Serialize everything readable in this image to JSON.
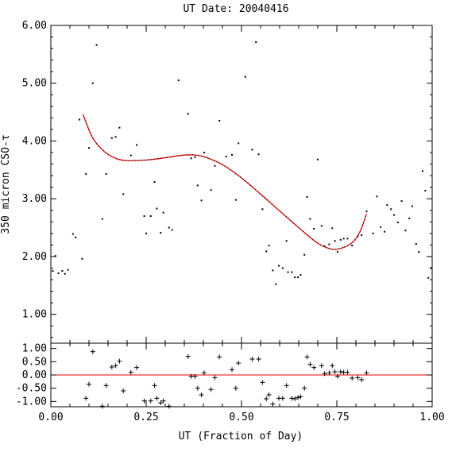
{
  "chart_data": [
    {
      "type": "scatter",
      "title": "UT Date: 20040416",
      "xlabel": "",
      "ylabel": "350 micron CSO-τ",
      "xlim": [
        0,
        1
      ],
      "ylim": [
        0.5,
        6.0
      ],
      "yticks": [
        1.0,
        2.0,
        3.0,
        4.0,
        5.0,
        6.0
      ],
      "ytick_labels": [
        "1.00",
        "2.00",
        "3.00",
        "4.00",
        "5.00",
        "6.00"
      ],
      "series": [
        {
          "marker": "dot",
          "color": "#000000",
          "points": [
            [
              0.005,
              1.75
            ],
            [
              0.012,
              2.01
            ],
            [
              0.02,
              1.71
            ],
            [
              0.03,
              1.75
            ],
            [
              0.037,
              1.7
            ],
            [
              0.045,
              1.77
            ],
            [
              0.058,
              2.39
            ],
            [
              0.065,
              2.33
            ],
            [
              0.075,
              4.37
            ],
            [
              0.082,
              1.96
            ],
            [
              0.092,
              3.43
            ],
            [
              0.1,
              3.88
            ],
            [
              0.11,
              5.0
            ],
            [
              0.12,
              5.66
            ],
            [
              0.135,
              2.65
            ],
            [
              0.145,
              3.43
            ],
            [
              0.16,
              4.05
            ],
            [
              0.17,
              4.07
            ],
            [
              0.18,
              4.23
            ],
            [
              0.19,
              3.08
            ],
            [
              0.21,
              3.75
            ],
            [
              0.225,
              3.93
            ],
            [
              0.245,
              2.7
            ],
            [
              0.25,
              2.4
            ],
            [
              0.262,
              2.7
            ],
            [
              0.272,
              3.29
            ],
            [
              0.278,
              2.83
            ],
            [
              0.288,
              2.41
            ],
            [
              0.295,
              2.76
            ],
            [
              0.31,
              2.5
            ],
            [
              0.318,
              2.46
            ],
            [
              0.335,
              5.05
            ],
            [
              0.36,
              4.47
            ],
            [
              0.368,
              3.7
            ],
            [
              0.378,
              3.72
            ],
            [
              0.385,
              3.23
            ],
            [
              0.395,
              2.97
            ],
            [
              0.402,
              3.8
            ],
            [
              0.42,
              3.15
            ],
            [
              0.43,
              3.57
            ],
            [
              0.442,
              4.35
            ],
            [
              0.46,
              3.73
            ],
            [
              0.475,
              3.76
            ],
            [
              0.485,
              2.98
            ],
            [
              0.492,
              3.96
            ],
            [
              0.51,
              5.11
            ],
            [
              0.528,
              3.85
            ],
            [
              0.538,
              5.71
            ],
            [
              0.545,
              3.77
            ],
            [
              0.555,
              2.82
            ],
            [
              0.565,
              2.09
            ],
            [
              0.572,
              2.19
            ],
            [
              0.582,
              1.76
            ],
            [
              0.59,
              1.52
            ],
            [
              0.598,
              1.84
            ],
            [
              0.608,
              1.8
            ],
            [
              0.618,
              2.27
            ],
            [
              0.622,
              1.73
            ],
            [
              0.632,
              1.73
            ],
            [
              0.64,
              1.64
            ],
            [
              0.648,
              1.64
            ],
            [
              0.655,
              1.68
            ],
            [
              0.665,
              2.03
            ],
            [
              0.672,
              3.03
            ],
            [
              0.68,
              2.65
            ],
            [
              0.69,
              2.48
            ],
            [
              0.7,
              3.68
            ],
            [
              0.71,
              2.53
            ],
            [
              0.718,
              2.18
            ],
            [
              0.73,
              2.21
            ],
            [
              0.738,
              2.49
            ],
            [
              0.745,
              2.27
            ],
            [
              0.752,
              2.08
            ],
            [
              0.76,
              2.29
            ],
            [
              0.768,
              2.31
            ],
            [
              0.778,
              2.31
            ],
            [
              0.79,
              2.19
            ],
            [
              0.805,
              2.35
            ],
            [
              0.815,
              2.37
            ],
            [
              0.828,
              2.78
            ],
            [
              0.845,
              2.4
            ],
            [
              0.855,
              3.04
            ],
            [
              0.865,
              2.51
            ],
            [
              0.875,
              2.43
            ],
            [
              0.882,
              2.89
            ],
            [
              0.892,
              2.82
            ],
            [
              0.9,
              2.72
            ],
            [
              0.91,
              2.59
            ],
            [
              0.92,
              2.96
            ],
            [
              0.93,
              2.45
            ],
            [
              0.94,
              2.66
            ],
            [
              0.948,
              2.87
            ],
            [
              0.958,
              2.22
            ],
            [
              0.965,
              2.08
            ],
            [
              0.975,
              3.48
            ],
            [
              0.982,
              3.14
            ],
            [
              0.99,
              1.63
            ],
            [
              0.997,
              1.8
            ]
          ]
        },
        {
          "type": "polynomial-fit",
          "color": "#ff0000",
          "x_range": [
            0.085,
            0.828
          ],
          "knots": [
            [
              0.085,
              4.45
            ],
            [
              0.11,
              4.05
            ],
            [
              0.14,
              3.82
            ],
            [
              0.17,
              3.7
            ],
            [
              0.2,
              3.66
            ],
            [
              0.25,
              3.67
            ],
            [
              0.3,
              3.71
            ],
            [
              0.34,
              3.75
            ],
            [
              0.37,
              3.76
            ],
            [
              0.4,
              3.73
            ],
            [
              0.45,
              3.59
            ],
            [
              0.5,
              3.36
            ],
            [
              0.55,
              3.08
            ],
            [
              0.6,
              2.79
            ],
            [
              0.65,
              2.5
            ],
            [
              0.7,
              2.23
            ],
            [
              0.735,
              2.13
            ],
            [
              0.76,
              2.14
            ],
            [
              0.79,
              2.24
            ],
            [
              0.81,
              2.42
            ],
            [
              0.828,
              2.74
            ]
          ]
        }
      ]
    },
    {
      "type": "scatter",
      "title": "",
      "xlabel": "UT (Fraction of Day)",
      "ylabel": "",
      "xlim": [
        0,
        1
      ],
      "ylim": [
        -1.2,
        1.2
      ],
      "xticks": [
        0,
        0.25,
        0.5,
        0.75,
        1.0
      ],
      "xtick_labels": [
        "0.00",
        "0.25",
        "0.50",
        "0.75",
        "1.00"
      ],
      "yticks": [
        -1.0,
        -0.5,
        0.0,
        0.5,
        1.0
      ],
      "ytick_labels": [
        "-1.00",
        "-0.50",
        "0.00",
        "0.50",
        "1.00"
      ],
      "reference_line": {
        "y": 0,
        "color": "#ff0000"
      },
      "series": [
        {
          "marker": "plus",
          "color": "#000000",
          "points": [
            [
              0.092,
              -0.88
            ],
            [
              0.1,
              -0.35
            ],
            [
              0.11,
              0.88
            ],
            [
              0.135,
              -1.18
            ],
            [
              0.145,
              -0.4
            ],
            [
              0.16,
              0.3
            ],
            [
              0.17,
              0.35
            ],
            [
              0.18,
              0.52
            ],
            [
              0.19,
              -0.6
            ],
            [
              0.21,
              0.1
            ],
            [
              0.225,
              0.28
            ],
            [
              0.245,
              -0.98
            ],
            [
              0.262,
              -0.98
            ],
            [
              0.272,
              -0.4
            ],
            [
              0.278,
              -0.88
            ],
            [
              0.288,
              -1.05
            ],
            [
              0.295,
              -0.98
            ],
            [
              0.31,
              -1.18
            ],
            [
              0.36,
              0.7
            ],
            [
              0.368,
              -0.05
            ],
            [
              0.378,
              -0.05
            ],
            [
              0.385,
              -0.5
            ],
            [
              0.395,
              -0.75
            ],
            [
              0.402,
              0.08
            ],
            [
              0.42,
              -0.55
            ],
            [
              0.43,
              -0.1
            ],
            [
              0.442,
              0.68
            ],
            [
              0.475,
              0.2
            ],
            [
              0.485,
              -0.5
            ],
            [
              0.492,
              0.45
            ],
            [
              0.528,
              0.6
            ],
            [
              0.545,
              0.6
            ],
            [
              0.555,
              -0.28
            ],
            [
              0.565,
              -0.9
            ],
            [
              0.572,
              -0.75
            ],
            [
              0.582,
              -1.1
            ],
            [
              0.598,
              -0.88
            ],
            [
              0.608,
              -0.88
            ],
            [
              0.618,
              -0.4
            ],
            [
              0.632,
              -0.88
            ],
            [
              0.64,
              -0.9
            ],
            [
              0.648,
              -0.85
            ],
            [
              0.655,
              -0.82
            ],
            [
              0.665,
              -0.5
            ],
            [
              0.672,
              0.68
            ],
            [
              0.68,
              0.4
            ],
            [
              0.69,
              0.28
            ],
            [
              0.71,
              0.35
            ],
            [
              0.718,
              0.05
            ],
            [
              0.73,
              0.08
            ],
            [
              0.738,
              0.35
            ],
            [
              0.745,
              0.12
            ],
            [
              0.752,
              -0.05
            ],
            [
              0.76,
              0.12
            ],
            [
              0.768,
              0.1
            ],
            [
              0.778,
              0.1
            ],
            [
              0.79,
              -0.12
            ],
            [
              0.805,
              -0.1
            ],
            [
              0.815,
              -0.18
            ],
            [
              0.828,
              0.08
            ]
          ]
        }
      ]
    }
  ]
}
